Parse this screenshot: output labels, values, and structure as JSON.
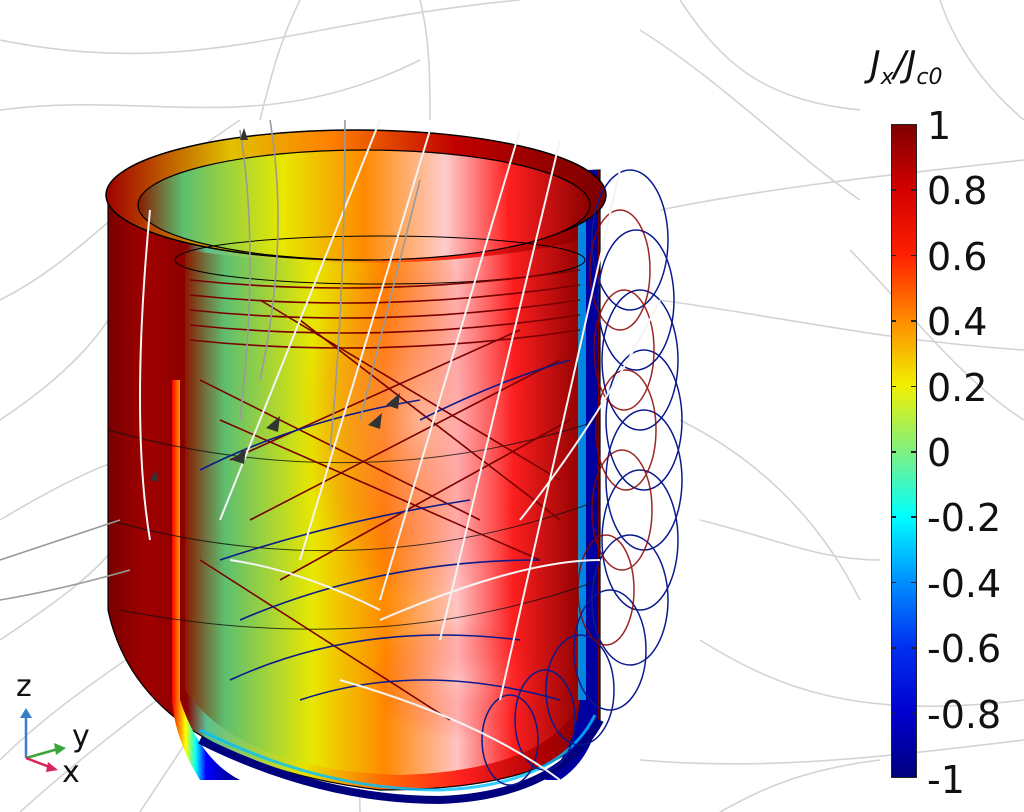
{
  "figure": {
    "description": "3D surface plot of normalized current density on a superconducting cup with magnetic field streamlines",
    "colorbar": {
      "title_main": "J",
      "title_sub1": "x",
      "title_slash": "/",
      "title_main2": "J",
      "title_sub2": "c0",
      "ticks": [
        "1",
        "0.8",
        "0.6",
        "0.4",
        "0.2",
        "0",
        "-0.2",
        "-0.4",
        "-0.6",
        "-0.8",
        "-1"
      ],
      "colormap": "rainbow (dark red to dark blue)"
    },
    "axes_triad": {
      "z_label": "z",
      "y_label": "y",
      "x_label": "x",
      "z_color": "#3a7fc4",
      "y_color": "#3aa63a",
      "x_color": "#d8245a"
    },
    "colors": {
      "max": "#7f0000",
      "red": "#ff0000",
      "orange": "#ff8c00",
      "yellow": "#ffff00",
      "green": "#66ee88",
      "cyan": "#00ffff",
      "blue": "#0040ff",
      "min": "#00007f",
      "streamline_gray": "#bdbdbd",
      "streamline_white": "#ffffff",
      "current_red": "#8b0000",
      "current_blue": "#0a1a8c"
    }
  },
  "chart_data": {
    "type": "heatmap",
    "title": "",
    "colorbar_label": "Jx/Jc0",
    "colorbar_range": [
      -1,
      1
    ],
    "colorbar_ticks": [
      1,
      0.8,
      0.6,
      0.4,
      0.2,
      0,
      -0.2,
      -0.4,
      -0.6,
      -0.8,
      -1
    ],
    "colormap_stops": [
      {
        "value": 1,
        "color": "#7f0000"
      },
      {
        "value": 0.8,
        "color": "#d40000"
      },
      {
        "value": 0.6,
        "color": "#ff2000"
      },
      {
        "value": 0.4,
        "color": "#ff8c00"
      },
      {
        "value": 0.2,
        "color": "#f0f000"
      },
      {
        "value": 0,
        "color": "#80f080"
      },
      {
        "value": -0.2,
        "color": "#00ffff"
      },
      {
        "value": -0.4,
        "color": "#0090ff"
      },
      {
        "value": -0.6,
        "color": "#0030f0"
      },
      {
        "value": -0.8,
        "color": "#0000d0"
      },
      {
        "value": -1,
        "color": "#00007f"
      }
    ],
    "axes": [
      "x",
      "y",
      "z"
    ],
    "legend_position": "right",
    "grid": false
  }
}
